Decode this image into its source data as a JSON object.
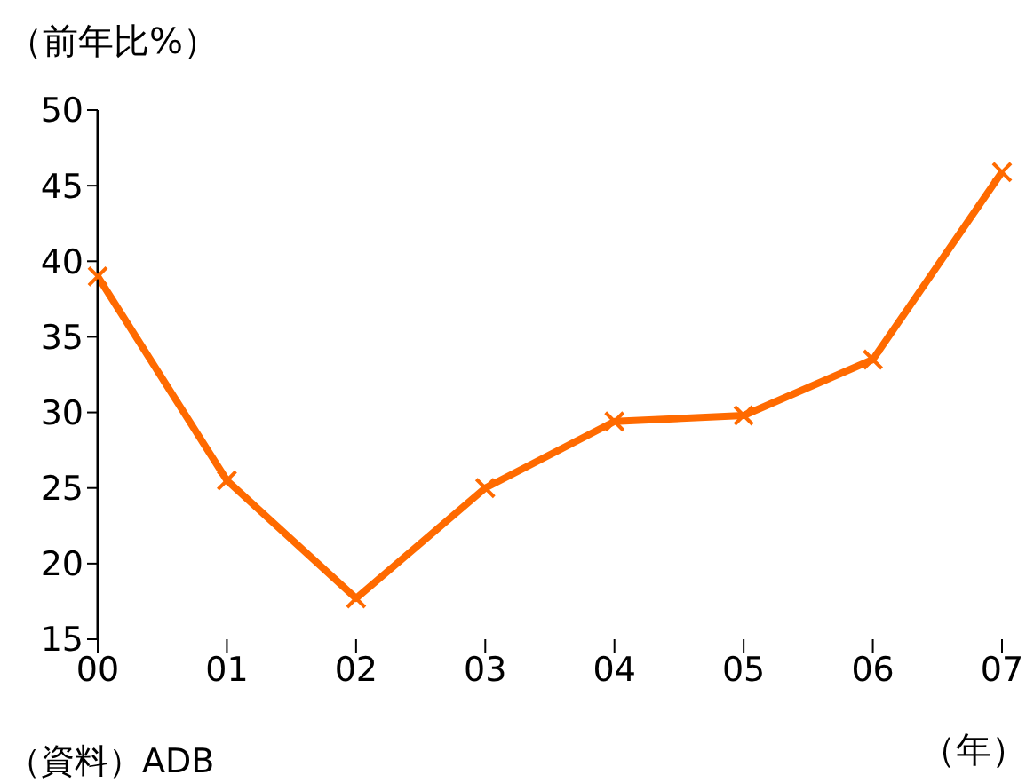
{
  "chart_data": {
    "type": "line",
    "ylabel": "（前年比%）",
    "xlabel": "（年）",
    "annotations": [
      "（資料）ADB"
    ],
    "categories": [
      "00",
      "01",
      "02",
      "03",
      "04",
      "05",
      "06",
      "07"
    ],
    "series": [
      {
        "color": "#ff6a00",
        "values": [
          39,
          25.5,
          17.7,
          25,
          29.4,
          29.8,
          33.5,
          45.9
        ]
      }
    ],
    "ylim": [
      15,
      50
    ],
    "yticks": [
      15,
      20,
      25,
      30,
      35,
      40,
      45,
      50
    ],
    "marker": "cross",
    "line_style": "solid"
  }
}
